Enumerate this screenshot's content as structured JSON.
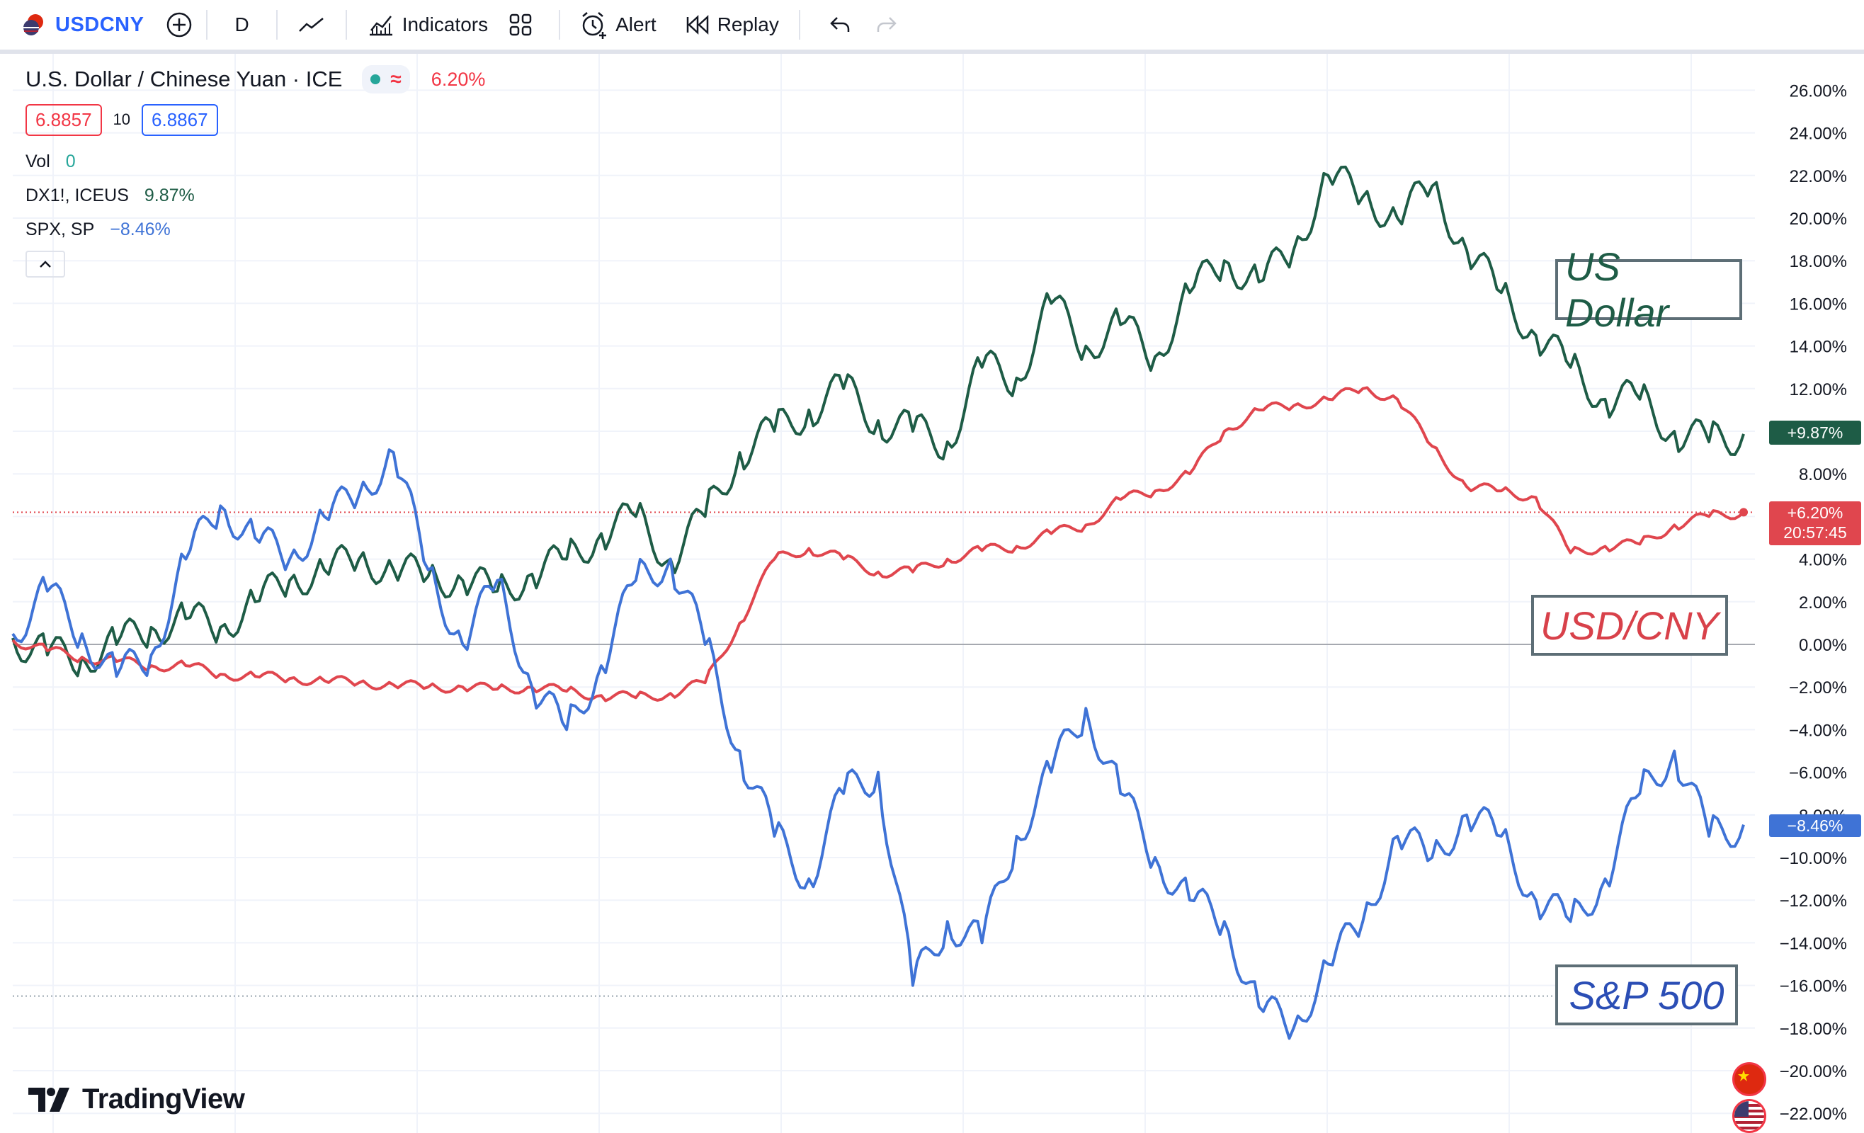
{
  "toolbar": {
    "symbol": "USDCNY",
    "interval": "D",
    "indicators_label": "Indicators",
    "alert_label": "Alert",
    "replay_label": "Replay"
  },
  "legend": {
    "title": "U.S. Dollar / Chinese Yuan · ICE",
    "approx_symbol": "≈",
    "change": "6.20%",
    "sell_price": "6.8857",
    "spread": "10",
    "buy_price": "6.8867",
    "vol_label": "Vol",
    "vol_value": "0",
    "dx_label": "DX1!, ICEUS",
    "dx_value": "9.87%",
    "spx_label": "SPX, SP",
    "spx_value": "−8.46%"
  },
  "annotations": {
    "us_dollar": "US Dollar",
    "usd_cny": "USD/CNY",
    "sp500": "S&P 500"
  },
  "axis_tags": {
    "dx": "+9.87%",
    "usdcny": "+6.20%",
    "countdown": "20:57:45",
    "spx": "−8.46%"
  },
  "watermark": "TradingView",
  "colors": {
    "usdcny": "#e0464e",
    "dx": "#1e5c46",
    "spx": "#3f73d6",
    "toolbar_symbol": "#2962ff"
  },
  "chart_data": {
    "type": "line",
    "y_unit": "%",
    "ylim": [
      -23,
      27
    ],
    "yticks": [
      "26.00%",
      "24.00%",
      "22.00%",
      "20.00%",
      "18.00%",
      "16.00%",
      "14.00%",
      "12.00%",
      "10.00%",
      "8.00%",
      "6.00%",
      "4.00%",
      "2.00%",
      "0.00%",
      "−2.00%",
      "−4.00%",
      "−6.00%",
      "−8.00%",
      "−10.00%",
      "−12.00%",
      "−14.00%",
      "−16.00%",
      "−18.00%",
      "−20.00%",
      "−22.00%"
    ],
    "ytick_values": [
      26,
      24,
      22,
      20,
      18,
      16,
      14,
      12,
      10,
      8,
      6,
      4,
      2,
      0,
      -2,
      -4,
      -6,
      -8,
      -10,
      -12,
      -14,
      -16,
      -18,
      -20,
      -22
    ],
    "grid": true,
    "series": [
      {
        "name": "DX1!, ICEUS",
        "key": "dx",
        "x": [
          0,
          2,
          4,
          6,
          8,
          10,
          12,
          14,
          16,
          18,
          20,
          22,
          24,
          26,
          28,
          30,
          32,
          34,
          36,
          38,
          40,
          42,
          44,
          46,
          48,
          50,
          52,
          54,
          56,
          58,
          60,
          62,
          64,
          66,
          68,
          70,
          72,
          74,
          76,
          78,
          80,
          82,
          84,
          86,
          88,
          90,
          92,
          94,
          96,
          98,
          100
        ],
        "values": [
          0.3,
          -0.5,
          -0.6,
          0,
          0.8,
          1.2,
          0.8,
          2,
          3,
          3.5,
          4,
          3.5,
          3.2,
          3,
          2.5,
          3.3,
          4,
          5.2,
          6,
          4,
          6,
          9,
          10,
          11,
          12,
          10.5,
          10,
          9.5,
          13,
          12.5,
          16,
          14,
          15,
          13.5,
          16.5,
          18,
          17,
          18.5,
          22,
          21,
          20,
          21.5,
          18.5,
          16.5,
          14.5,
          13,
          11.5,
          11.5,
          10,
          9.5,
          9.87
        ]
      },
      {
        "name": "USD/CNY",
        "key": "usdcny",
        "x": [
          0,
          2,
          4,
          6,
          8,
          10,
          12,
          14,
          16,
          18,
          20,
          22,
          24,
          26,
          28,
          30,
          32,
          34,
          36,
          38,
          40,
          42,
          44,
          46,
          48,
          50,
          52,
          54,
          56,
          58,
          60,
          62,
          64,
          66,
          68,
          70,
          72,
          74,
          76,
          78,
          80,
          82,
          84,
          86,
          88,
          90,
          92,
          94,
          96,
          98,
          100
        ],
        "values": [
          0.2,
          -0.3,
          -0.6,
          -0.8,
          -1,
          -1,
          -1.4,
          -1.5,
          -1.6,
          -1.7,
          -1.8,
          -1.9,
          -2,
          -2,
          -2.1,
          -2,
          -2.2,
          -2.4,
          -2.5,
          -2.3,
          -1.8,
          1,
          4,
          4.5,
          4,
          3.4,
          3.4,
          4,
          4.4,
          4.6,
          5.2,
          5.6,
          6.8,
          7.2,
          8,
          10,
          11,
          11.2,
          11.5,
          12,
          11.5,
          9.3,
          7.4,
          7.2,
          6.9,
          4.3,
          4.6,
          4.7,
          5.6,
          6,
          6.2
        ]
      },
      {
        "name": "SPX, SP",
        "key": "spx",
        "x": [
          0,
          2,
          4,
          6,
          8,
          10,
          12,
          14,
          16,
          18,
          20,
          22,
          24,
          26,
          28,
          30,
          32,
          34,
          36,
          38,
          40,
          42,
          44,
          46,
          48,
          50,
          52,
          54,
          56,
          58,
          60,
          62,
          64,
          66,
          68,
          70,
          72,
          74,
          76,
          78,
          80,
          82,
          84,
          86,
          88,
          90,
          92,
          94,
          96,
          98,
          100
        ],
        "values": [
          0.5,
          2.5,
          0.5,
          -1.5,
          -0.5,
          4,
          6.5,
          5,
          4,
          6,
          7,
          9,
          3.5,
          0,
          3,
          -2,
          -4,
          -1,
          3,
          4,
          0,
          -5,
          -9,
          -11,
          -7,
          -6,
          -16,
          -13,
          -14,
          -9,
          -6,
          -3,
          -7,
          -10,
          -12,
          -13,
          -17,
          -18,
          -15,
          -13,
          -9,
          -10,
          -8,
          -9,
          -12,
          -13,
          -11,
          -7,
          -5,
          -9,
          -8.46
        ]
      }
    ]
  }
}
